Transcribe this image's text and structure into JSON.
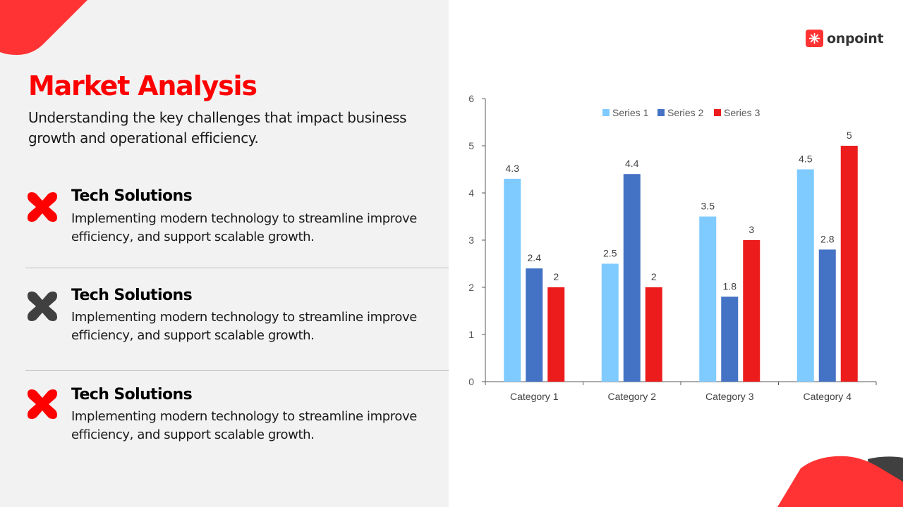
{
  "title": "Market Analysis",
  "subtitle": "Understanding the key challenges that impact business growth and operational efficiency.",
  "items": [
    {
      "title": "Tech Solutions",
      "description": "Implementing modern technology to streamline improve efficiency, and support scalable growth.",
      "icon": "x-shape-icon",
      "color": "#ff0000"
    },
    {
      "title": "Tech Solutions",
      "description": "Implementing modern technology to streamline improve efficiency, and support scalable growth.",
      "icon": "x-shape-icon",
      "color": "#404040"
    },
    {
      "title": "Tech Solutions",
      "description": "Implementing modern technology to streamline improve efficiency, and support scalable growth.",
      "icon": "x-shape-icon",
      "color": "#ff0000"
    }
  ],
  "logo": {
    "text": "onpoint",
    "icon": "starburst-icon",
    "color": "#ff3333"
  },
  "colors": {
    "accent": "#ff0000",
    "shape_red": "#ff3333",
    "shape_dark": "#404040"
  },
  "chart_data": {
    "type": "bar",
    "title": "",
    "xlabel": "",
    "ylabel": "",
    "categories": [
      "Category 1",
      "Category 2",
      "Category 3",
      "Category 4"
    ],
    "series": [
      {
        "name": "Series 1",
        "values": [
          4.3,
          2.5,
          3.5,
          4.5
        ],
        "color": "#7fcbff"
      },
      {
        "name": "Series 2",
        "values": [
          2.4,
          4.4,
          1.8,
          2.8
        ],
        "color": "#4472c4"
      },
      {
        "name": "Series 3",
        "values": [
          2,
          2,
          3,
          5
        ],
        "color": "#ec1c1c"
      }
    ],
    "ylim": [
      0,
      6
    ],
    "yticks": [
      "0",
      "1",
      "2",
      "3",
      "4",
      "5",
      "6"
    ],
    "data_labels": [
      [
        "4.3",
        "2.5",
        "3.5",
        "4.5"
      ],
      [
        "2.4",
        "4.4",
        "1.8",
        "2.8"
      ],
      [
        "2",
        "2",
        "3",
        "5"
      ]
    ],
    "grid": false,
    "legend": "top"
  }
}
